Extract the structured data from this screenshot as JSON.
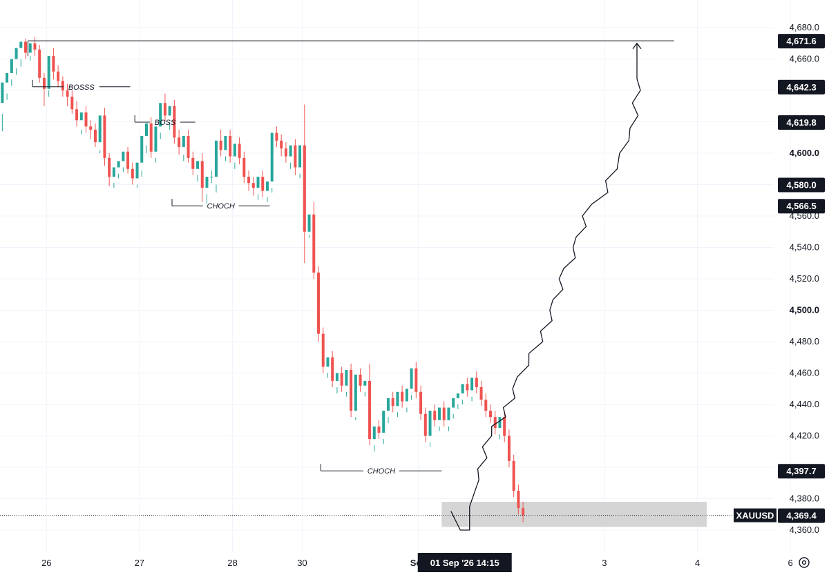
{
  "chart_data": {
    "type": "candlestick",
    "symbol": "XAUUSD",
    "last_price": 4369.4,
    "y_axis": {
      "range": [
        4353,
        4700
      ],
      "ticks": [
        4360,
        4380,
        4420,
        4440,
        4460,
        4480,
        4500,
        4520,
        4540,
        4560,
        4600,
        4660,
        4680
      ],
      "tick_labels": [
        "4,360.0",
        "4,380.0",
        "4,420.0",
        "4,440.0",
        "4,460.0",
        "4,480.0",
        "4,500.0",
        "4,520.0",
        "4,540.0",
        "4,560.0",
        "4,600.0",
        "4,660.0",
        "4,680.0"
      ],
      "bold_ticks": [
        4500,
        4600
      ]
    },
    "x_axis": {
      "labels": [
        {
          "text": "26",
          "t": 10
        },
        {
          "text": "27",
          "t": 30
        },
        {
          "text": "28",
          "t": 50
        },
        {
          "text": "30",
          "t": 65
        },
        {
          "text": "Sep",
          "t": 90
        },
        {
          "text": "3",
          "t": 130
        },
        {
          "text": "4",
          "t": 150
        },
        {
          "text": "6",
          "t": 170
        }
      ],
      "crosshair_label": {
        "text": "01 Sep '26   14:15",
        "t": 101
      }
    },
    "price_badges": [
      {
        "label": "4,671.6",
        "value": 4671.6
      },
      {
        "label": "4,642.3",
        "value": 4642.3
      },
      {
        "label": "4,619.8",
        "value": 4619.8
      },
      {
        "label": "4,580.0",
        "value": 4580.0
      },
      {
        "label": "4,566.5",
        "value": 4566.5
      },
      {
        "label": "4,397.7",
        "value": 4397.7
      },
      {
        "label": "4,369.4",
        "value": 4369.4
      }
    ],
    "candles": [
      [
        4632,
        4645,
        4625,
        4614
      ],
      [
        4645,
        4651,
        4638,
        4634
      ],
      [
        4651,
        4660,
        4647,
        4643
      ],
      [
        4660,
        4667,
        4654,
        4650
      ],
      [
        4667,
        4671,
        4660,
        4655
      ],
      [
        4671,
        4664,
        4673,
        4660
      ],
      [
        4664,
        4670,
        4662,
        4659
      ],
      [
        4670,
        4666,
        4674,
        4662
      ],
      [
        4666,
        4648,
        4669,
        4645
      ],
      [
        4648,
        4641,
        4651,
        4630
      ],
      [
        4641,
        4662,
        4640,
        4636
      ],
      [
        4662,
        4652,
        4667,
        4647
      ],
      [
        4652,
        4646,
        4656,
        4642
      ],
      [
        4646,
        4640,
        4649,
        4636
      ],
      [
        4640,
        4636,
        4644,
        4630
      ],
      [
        4636,
        4628,
        4640,
        4625
      ],
      [
        4628,
        4621,
        4633,
        4617
      ],
      [
        4621,
        4626,
        4615,
        4612
      ],
      [
        4626,
        4617,
        4630,
        4613
      ],
      [
        4617,
        4615,
        4621,
        4609
      ],
      [
        4615,
        4607,
        4619,
        4604
      ],
      [
        4607,
        4624,
        4602,
        4600
      ],
      [
        4624,
        4597,
        4629,
        4592
      ],
      [
        4597,
        4585,
        4600,
        4579
      ],
      [
        4585,
        4591,
        4581,
        4578
      ],
      [
        4591,
        4595,
        4587,
        4584
      ],
      [
        4595,
        4601,
        4591,
        4588
      ],
      [
        4601,
        4590,
        4604,
        4587
      ],
      [
        4590,
        4584,
        4594,
        4580
      ],
      [
        4584,
        4594,
        4580,
        4578
      ],
      [
        4594,
        4611,
        4589,
        4585
      ],
      [
        4611,
        4619,
        4605,
        4600
      ],
      [
        4619,
        4601,
        4623,
        4597
      ],
      [
        4601,
        4617,
        4597,
        4594
      ],
      [
        4617,
        4632,
        4613,
        4609
      ],
      [
        4632,
        4624,
        4638,
        4620
      ],
      [
        4624,
        4630,
        4619,
        4615
      ],
      [
        4630,
        4610,
        4634,
        4606
      ],
      [
        4610,
        4604,
        4615,
        4599
      ],
      [
        4604,
        4611,
        4599,
        4595
      ],
      [
        4611,
        4597,
        4615,
        4594
      ],
      [
        4597,
        4590,
        4601,
        4586
      ],
      [
        4590,
        4595,
        4586,
        4582
      ],
      [
        4595,
        4578,
        4600,
        4569
      ],
      [
        4578,
        4585,
        4574,
        4568
      ],
      [
        4585,
        4585,
        4589,
        4581
      ],
      [
        4585,
        4608,
        4580,
        4575
      ],
      [
        4608,
        4602,
        4615,
        4598
      ],
      [
        4602,
        4611,
        4598,
        4595
      ],
      [
        4611,
        4598,
        4615,
        4594
      ],
      [
        4598,
        4606,
        4594,
        4590
      ],
      [
        4606,
        4597,
        4610,
        4593
      ],
      [
        4597,
        4585,
        4601,
        4581
      ],
      [
        4585,
        4581,
        4589,
        4576
      ],
      [
        4581,
        4578,
        4585,
        4573
      ],
      [
        4578,
        4585,
        4574,
        4570
      ],
      [
        4585,
        4576,
        4589,
        4572
      ],
      [
        4576,
        4582,
        4572,
        4569
      ],
      [
        4582,
        4613,
        4578,
        4575
      ],
      [
        4613,
        4608,
        4617,
        4604
      ],
      [
        4608,
        4603,
        4612,
        4598
      ],
      [
        4603,
        4598,
        4607,
        4594
      ],
      [
        4598,
        4605,
        4594,
        4590
      ],
      [
        4605,
        4591,
        4609,
        4586
      ],
      [
        4591,
        4605,
        4587,
        4584
      ],
      [
        4605,
        4550,
        4631,
        4530
      ],
      [
        4550,
        4561,
        4548,
        4546
      ],
      [
        4561,
        4524,
        4569,
        4520
      ],
      [
        4524,
        4485,
        4528,
        4480
      ],
      [
        4485,
        4464,
        4489,
        4460
      ],
      [
        4464,
        4470,
        4460,
        4457
      ],
      [
        4470,
        4455,
        4474,
        4451
      ],
      [
        4455,
        4460,
        4451,
        4447
      ],
      [
        4460,
        4452,
        4464,
        4448
      ],
      [
        4452,
        4462,
        4448,
        4445
      ],
      [
        4462,
        4436,
        4466,
        4432
      ],
      [
        4436,
        4459,
        4432,
        4430
      ],
      [
        4459,
        4452,
        4463,
        4448
      ],
      [
        4452,
        4455,
        4448,
        4445
      ],
      [
        4455,
        4418,
        4466,
        4414
      ],
      [
        4418,
        4426,
        4414,
        4410
      ],
      [
        4426,
        4422,
        4430,
        4418
      ],
      [
        4422,
        4436,
        4418,
        4415
      ],
      [
        4436,
        4444,
        4432,
        4428
      ],
      [
        4444,
        4439,
        4448,
        4435
      ],
      [
        4439,
        4448,
        4435,
        4432
      ],
      [
        4448,
        4442,
        4452,
        4438
      ],
      [
        4442,
        4450,
        4438,
        4435
      ],
      [
        4450,
        4463,
        4446,
        4443
      ],
      [
        4463,
        4448,
        4467,
        4444
      ],
      [
        4448,
        4434,
        4452,
        4430
      ],
      [
        4434,
        4420,
        4438,
        4416
      ],
      [
        4420,
        4436,
        4416,
        4413
      ],
      [
        4436,
        4430,
        4440,
        4426
      ],
      [
        4430,
        4438,
        4426,
        4423
      ],
      [
        4438,
        4430,
        4442,
        4426
      ],
      [
        4430,
        4438,
        4426,
        4423
      ],
      [
        4438,
        4444,
        4434,
        4431
      ],
      [
        4444,
        4447,
        4440,
        4437
      ],
      [
        4447,
        4453,
        4443,
        4440
      ],
      [
        4453,
        4449,
        4457,
        4445
      ],
      [
        4449,
        4457,
        4445,
        4442
      ],
      [
        4457,
        4451,
        4461,
        4447
      ],
      [
        4451,
        4443,
        4455,
        4439
      ],
      [
        4443,
        4436,
        4447,
        4432
      ],
      [
        4436,
        4432,
        4440,
        4428
      ],
      [
        4432,
        4425,
        4436,
        4421
      ],
      [
        4425,
        4432,
        4421,
        4418
      ],
      [
        4432,
        4420,
        4436,
        4416
      ],
      [
        4420,
        4404,
        4424,
        4400
      ],
      [
        4404,
        4385,
        4408,
        4381
      ],
      [
        4385,
        4374,
        4389,
        4370
      ],
      [
        4374,
        4369.4,
        4378,
        4365
      ]
    ],
    "annotations": [
      {
        "type": "hline",
        "t1": 6,
        "t2": 145,
        "price": 4671.6
      },
      {
        "type": "label_line",
        "text": "BOSSS",
        "t1": 7,
        "t2": 28,
        "price": 4642.3
      },
      {
        "type": "label_line",
        "text": "BOSS",
        "t1": 29,
        "t2": 42,
        "price": 4619.8
      },
      {
        "type": "label_line",
        "text": "CHOCH",
        "t1": 37,
        "t2": 58,
        "price": 4566.5
      },
      {
        "type": "label_line",
        "text": "CHOCH",
        "t1": 69,
        "t2": 95,
        "price": 4397.7
      },
      {
        "type": "zone",
        "t1": 95,
        "t2": 152,
        "price_top": 4378,
        "price_bottom": 4362
      }
    ],
    "projection_path": [
      [
        97,
        4372
      ],
      [
        99,
        4360
      ],
      [
        101,
        4360
      ],
      [
        101,
        4375
      ],
      [
        103,
        4392
      ],
      [
        105,
        4420
      ],
      [
        108,
        4432
      ],
      [
        111,
        4450
      ],
      [
        113,
        4465
      ],
      [
        116,
        4480
      ],
      [
        119,
        4500
      ],
      [
        121,
        4520
      ],
      [
        124,
        4540
      ],
      [
        126,
        4560
      ],
      [
        130,
        4575
      ],
      [
        132,
        4590
      ],
      [
        134,
        4600
      ],
      [
        136,
        4608
      ],
      [
        137,
        4640
      ],
      [
        137,
        4670
      ]
    ],
    "colors": {
      "up": "#26a69a",
      "down": "#ef5350",
      "zone": "#d5d5d5",
      "badge": "#131722",
      "grid": "#f0f3fa"
    }
  }
}
